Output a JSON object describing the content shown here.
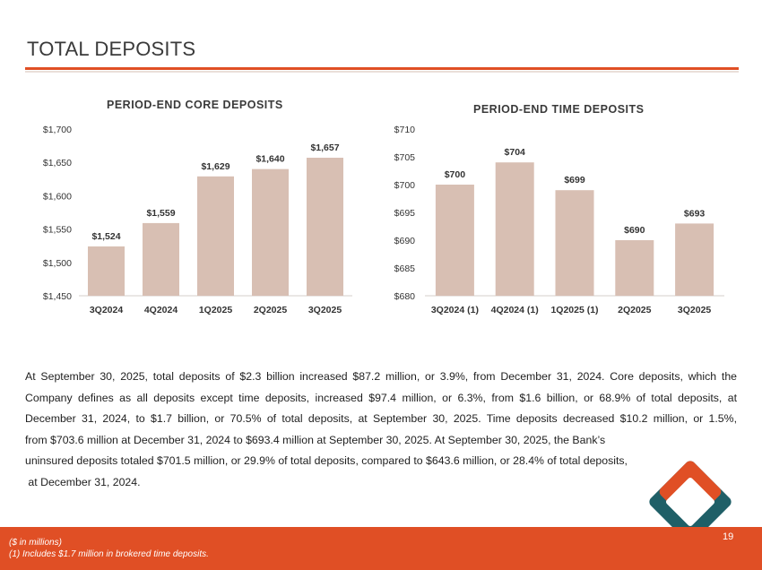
{
  "page": {
    "title": "TOTAL DEPOSITS",
    "page_number": "19"
  },
  "colors": {
    "accent": "#e04f25",
    "bar": "#d8bfb3",
    "logo_teal": "#1f5f67"
  },
  "chart_data": [
    {
      "type": "bar",
      "title": "PERIOD-END CORE DEPOSITS",
      "categories": [
        "3Q2024",
        "4Q2024",
        "1Q2025",
        "2Q2025",
        "3Q2025"
      ],
      "values": [
        1524,
        1559,
        1629,
        1640,
        1657
      ],
      "value_labels": [
        "$1,524",
        "$1,559",
        "$1,629",
        "$1,640",
        "$1,657"
      ],
      "yticks": [
        1450,
        1500,
        1550,
        1600,
        1650,
        1700
      ],
      "ytick_labels": [
        "$1,450",
        "$1,500",
        "$1,550",
        "$1,600",
        "$1,650",
        "$1,700"
      ],
      "ylim": [
        1450,
        1700
      ],
      "xlabel": "",
      "ylabel": "",
      "grid": false
    },
    {
      "type": "bar",
      "title": "PERIOD-END TIME DEPOSITS",
      "categories": [
        "3Q2024 (1)",
        "4Q2024 (1)",
        "1Q2025 (1)",
        "2Q2025",
        "3Q2025"
      ],
      "values": [
        700,
        704,
        699,
        690,
        693
      ],
      "value_labels": [
        "$700",
        "$704",
        "$699",
        "$690",
        "$693"
      ],
      "yticks": [
        680,
        685,
        690,
        695,
        700,
        705,
        710
      ],
      "ytick_labels": [
        "$680",
        "$685",
        "$690",
        "$695",
        "$700",
        "$705",
        "$710"
      ],
      "ylim": [
        680,
        710
      ],
      "xlabel": "",
      "ylabel": "",
      "grid": false
    }
  ],
  "body": {
    "lines": [
      "At September 30, 2025, total deposits of $2.3 billion increased $87.2 million, or 3.9%, from December 31, 2024. Core deposits, which the",
      "Company defines as all deposits except time deposits, increased $97.4 million, or 6.3%, from $1.6 billion, or 68.9% of total deposits, at",
      "December 31, 2024, to $1.7 billion, or 70.5% of total deposits, at September 30, 2025. Time deposits decreased $10.2 million, or 1.5%,",
      "from $703.6 million at December 31, 2024 to $693.4 million at September 30, 2025. At September 30, 2025, the Bank’s",
      "uninsured deposits totaled $701.5 million, or 29.9% of total deposits, compared to $643.6 million, or 28.4% of total deposits,",
      " at December 31, 2024."
    ]
  },
  "footer": {
    "note1": "($ in millions)",
    "note2": "(1) Includes $1.7 million in brokered time deposits."
  }
}
